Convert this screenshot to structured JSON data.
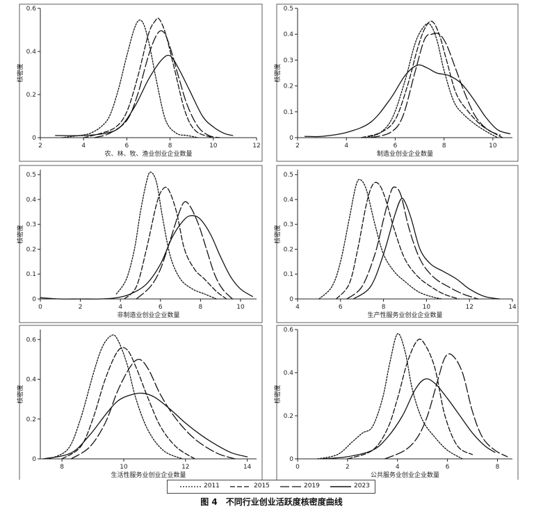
{
  "figure": {
    "caption": "图 4　不同行业创业活跃度核密度曲线"
  },
  "legend": [
    {
      "label": "2011",
      "dash": "2,2"
    },
    {
      "label": "2015",
      "dash": "7,3"
    },
    {
      "label": "2019",
      "dash": "13,4"
    },
    {
      "label": "2023",
      "dash": ""
    }
  ],
  "chart_data": [
    {
      "type": "line",
      "xlabel": "农、林、牧、渔业创业企业数量",
      "ylabel": "核密度",
      "xlim": [
        2,
        12
      ],
      "ylim": [
        0,
        0.6
      ],
      "xticks": [
        "2",
        "4",
        "6",
        "8",
        "10",
        "12"
      ],
      "yticks": [
        "0",
        "0.2",
        "0.4",
        "0.6"
      ],
      "series": [
        {
          "name": "2011",
          "x": [
            3.0,
            3.8,
            4.3,
            4.8,
            5.2,
            5.6,
            6.0,
            6.4,
            6.7,
            7.0,
            7.4,
            7.8,
            8.3,
            8.8,
            9.3
          ],
          "y": [
            0.0,
            0.01,
            0.02,
            0.05,
            0.1,
            0.22,
            0.38,
            0.52,
            0.54,
            0.45,
            0.25,
            0.08,
            0.02,
            0.01,
            0.0
          ]
        },
        {
          "name": "2015",
          "x": [
            4.0,
            4.8,
            5.5,
            6.0,
            6.5,
            7.0,
            7.3,
            7.5,
            7.8,
            8.2,
            8.7,
            9.2,
            10.0
          ],
          "y": [
            0.0,
            0.02,
            0.05,
            0.12,
            0.28,
            0.48,
            0.54,
            0.55,
            0.48,
            0.32,
            0.12,
            0.03,
            0.0
          ]
        },
        {
          "name": "2019",
          "x": [
            4.5,
            5.2,
            6.0,
            6.5,
            7.0,
            7.4,
            7.7,
            8.0,
            8.4,
            8.8,
            9.3,
            9.8,
            10.3
          ],
          "y": [
            0.0,
            0.02,
            0.08,
            0.2,
            0.38,
            0.48,
            0.49,
            0.42,
            0.28,
            0.15,
            0.05,
            0.01,
            0.0
          ]
        },
        {
          "name": "2023",
          "x": [
            2.7,
            4.0,
            5.0,
            5.7,
            6.4,
            7.0,
            7.6,
            8.0,
            8.4,
            8.9,
            9.5,
            10.0,
            10.5,
            10.9
          ],
          "y": [
            0.01,
            0.01,
            0.02,
            0.05,
            0.15,
            0.27,
            0.36,
            0.38,
            0.32,
            0.22,
            0.1,
            0.05,
            0.02,
            0.01
          ]
        }
      ]
    },
    {
      "type": "line",
      "xlabel": "制造业创业企业数量",
      "ylabel": "核密度",
      "xlim": [
        2,
        10.8
      ],
      "ylim": [
        0,
        0.5
      ],
      "xticks": [
        "2",
        "4",
        "6",
        "8",
        "10"
      ],
      "yticks": [
        "0",
        "0.1",
        "0.2",
        "0.3",
        "0.4",
        "0.5"
      ],
      "series": [
        {
          "name": "2011",
          "x": [
            4.8,
            5.4,
            5.9,
            6.4,
            6.8,
            7.1,
            7.4,
            7.7,
            8.0,
            8.4,
            8.8,
            9.3,
            9.8,
            10.2
          ],
          "y": [
            0.0,
            0.02,
            0.08,
            0.22,
            0.36,
            0.42,
            0.44,
            0.38,
            0.26,
            0.14,
            0.09,
            0.05,
            0.02,
            0.0
          ]
        },
        {
          "name": "2015",
          "x": [
            4.6,
            5.4,
            6.0,
            6.5,
            6.9,
            7.2,
            7.5,
            7.8,
            8.1,
            8.5,
            9.0,
            9.5,
            10.0,
            10.4
          ],
          "y": [
            0.0,
            0.02,
            0.07,
            0.2,
            0.34,
            0.42,
            0.45,
            0.4,
            0.3,
            0.17,
            0.1,
            0.05,
            0.02,
            0.0
          ]
        },
        {
          "name": "2019",
          "x": [
            5.0,
            5.8,
            6.3,
            6.8,
            7.2,
            7.5,
            7.8,
            8.1,
            8.5,
            8.9,
            9.3,
            9.8,
            10.3
          ],
          "y": [
            0.0,
            0.02,
            0.08,
            0.25,
            0.38,
            0.4,
            0.4,
            0.36,
            0.26,
            0.16,
            0.08,
            0.03,
            0.01
          ]
        },
        {
          "name": "2023",
          "x": [
            2.3,
            3.0,
            4.0,
            5.0,
            5.8,
            6.4,
            6.9,
            7.3,
            7.7,
            8.2,
            8.7,
            9.2,
            9.7,
            10.2,
            10.7
          ],
          "y": [
            0.005,
            0.005,
            0.02,
            0.06,
            0.15,
            0.24,
            0.28,
            0.27,
            0.25,
            0.24,
            0.21,
            0.15,
            0.08,
            0.03,
            0.015
          ]
        }
      ]
    },
    {
      "type": "line",
      "xlabel": "非制造业创业企业数量",
      "ylabel": "核密度",
      "xlim": [
        0,
        10.8
      ],
      "ylim": [
        0,
        0.52
      ],
      "xticks": [
        "0",
        "2",
        "4",
        "6",
        "8",
        "10"
      ],
      "yticks": [
        "0",
        "0.1",
        "0.2",
        "0.3",
        "0.4",
        "0.5"
      ],
      "series": [
        {
          "name": "2011",
          "x": [
            3.8,
            4.3,
            4.7,
            5.0,
            5.3,
            5.5,
            5.8,
            6.1,
            6.5,
            7.0,
            7.6,
            8.2,
            8.8
          ],
          "y": [
            0.02,
            0.08,
            0.2,
            0.35,
            0.47,
            0.51,
            0.47,
            0.33,
            0.17,
            0.08,
            0.04,
            0.02,
            0.0
          ]
        },
        {
          "name": "2015",
          "x": [
            4.2,
            4.8,
            5.3,
            5.8,
            6.1,
            6.4,
            6.8,
            7.2,
            7.7,
            8.2,
            8.8,
            9.3
          ],
          "y": [
            0.0,
            0.05,
            0.2,
            0.38,
            0.44,
            0.44,
            0.35,
            0.2,
            0.12,
            0.08,
            0.03,
            0.0
          ]
        },
        {
          "name": "2019",
          "x": [
            4.8,
            5.5,
            6.0,
            6.5,
            6.9,
            7.2,
            7.5,
            7.9,
            8.3,
            8.7,
            9.1,
            9.6
          ],
          "y": [
            0.0,
            0.05,
            0.12,
            0.24,
            0.34,
            0.39,
            0.37,
            0.3,
            0.2,
            0.1,
            0.04,
            0.0
          ]
        },
        {
          "name": "2023",
          "x": [
            0.0,
            1.0,
            2.0,
            3.0,
            3.8,
            4.5,
            5.3,
            6.0,
            6.6,
            7.2,
            7.6,
            8.0,
            8.5,
            9.0,
            9.5,
            10.0,
            10.6
          ],
          "y": [
            0.005,
            0.0,
            0.0,
            0.0,
            0.005,
            0.02,
            0.06,
            0.14,
            0.25,
            0.32,
            0.335,
            0.32,
            0.26,
            0.17,
            0.09,
            0.04,
            0.01
          ]
        }
      ]
    },
    {
      "type": "line",
      "xlabel": "生产性服务业创业企业数量",
      "ylabel": "核密度",
      "xlim": [
        4,
        14
      ],
      "ylim": [
        0,
        0.52
      ],
      "xticks": [
        "4",
        "6",
        "8",
        "10",
        "12",
        "14"
      ],
      "yticks": [
        "0",
        "0.1",
        "0.2",
        "0.3",
        "0.4",
        "0.5"
      ],
      "series": [
        {
          "name": "2011",
          "x": [
            5.0,
            5.6,
            6.0,
            6.4,
            6.7,
            6.9,
            7.2,
            7.6,
            8.0,
            8.5,
            9.0,
            9.6,
            10.2,
            10.7
          ],
          "y": [
            0.0,
            0.05,
            0.15,
            0.32,
            0.45,
            0.48,
            0.44,
            0.3,
            0.18,
            0.11,
            0.07,
            0.03,
            0.01,
            0.0
          ]
        },
        {
          "name": "2015",
          "x": [
            5.8,
            6.4,
            6.8,
            7.2,
            7.5,
            7.8,
            8.1,
            8.5,
            9.0,
            9.6,
            10.2,
            10.8,
            11.5
          ],
          "y": [
            0.0,
            0.06,
            0.2,
            0.38,
            0.46,
            0.46,
            0.4,
            0.28,
            0.16,
            0.09,
            0.05,
            0.02,
            0.0
          ]
        },
        {
          "name": "2019",
          "x": [
            6.3,
            7.0,
            7.6,
            8.0,
            8.3,
            8.5,
            8.8,
            9.2,
            9.7,
            10.3,
            11.0,
            11.7,
            12.4
          ],
          "y": [
            0.0,
            0.05,
            0.18,
            0.32,
            0.42,
            0.45,
            0.42,
            0.28,
            0.16,
            0.09,
            0.05,
            0.02,
            0.0
          ]
        },
        {
          "name": "2023",
          "x": [
            6.6,
            7.4,
            8.0,
            8.5,
            8.8,
            9.0,
            9.3,
            9.7,
            10.2,
            10.8,
            11.4,
            12.0,
            12.7,
            13.4
          ],
          "y": [
            0.0,
            0.05,
            0.18,
            0.33,
            0.4,
            0.39,
            0.32,
            0.2,
            0.14,
            0.11,
            0.08,
            0.04,
            0.01,
            0.0
          ]
        }
      ]
    },
    {
      "type": "line",
      "xlabel": "生活性服务业创业企业数量",
      "ylabel": "核密度",
      "xlim": [
        7.3,
        14.3
      ],
      "ylim": [
        0,
        0.65
      ],
      "xticks": [
        "8",
        "10",
        "12",
        "14"
      ],
      "yticks": [
        "0",
        "0.2",
        "0.4",
        "0.6"
      ],
      "series": [
        {
          "name": "2011",
          "x": [
            7.6,
            8.2,
            8.6,
            9.0,
            9.3,
            9.6,
            9.8,
            10.1,
            10.4,
            10.8,
            11.3,
            11.9
          ],
          "y": [
            0.0,
            0.05,
            0.2,
            0.42,
            0.56,
            0.62,
            0.6,
            0.48,
            0.3,
            0.14,
            0.04,
            0.0
          ]
        },
        {
          "name": "2015",
          "x": [
            8.0,
            8.6,
            9.0,
            9.4,
            9.8,
            10.1,
            10.4,
            10.8,
            11.2,
            11.7,
            12.3
          ],
          "y": [
            0.0,
            0.06,
            0.2,
            0.4,
            0.54,
            0.55,
            0.46,
            0.3,
            0.16,
            0.06,
            0.0
          ]
        },
        {
          "name": "2019",
          "x": [
            8.3,
            8.9,
            9.4,
            9.8,
            10.2,
            10.5,
            10.8,
            11.2,
            11.7,
            12.3,
            13.0,
            13.6
          ],
          "y": [
            0.0,
            0.06,
            0.18,
            0.34,
            0.46,
            0.5,
            0.45,
            0.32,
            0.2,
            0.1,
            0.03,
            0.0
          ]
        },
        {
          "name": "2023",
          "x": [
            7.4,
            8.3,
            8.9,
            9.4,
            9.8,
            10.2,
            10.6,
            11.0,
            11.5,
            12.0,
            12.5,
            13.0,
            13.5,
            14.0
          ],
          "y": [
            0.0,
            0.03,
            0.12,
            0.22,
            0.29,
            0.32,
            0.33,
            0.31,
            0.25,
            0.18,
            0.12,
            0.07,
            0.03,
            0.01
          ]
        }
      ]
    },
    {
      "type": "line",
      "xlabel": "公共服务业创业企业数量",
      "ylabel": "核密度",
      "xlim": [
        0,
        8.6
      ],
      "ylim": [
        0,
        0.6
      ],
      "xticks": [
        "0",
        "2",
        "4",
        "6",
        "8"
      ],
      "yticks": [
        "0",
        "0.2",
        "0.4",
        "0.6"
      ],
      "series": [
        {
          "name": "2011",
          "x": [
            0.8,
            1.6,
            2.2,
            2.6,
            3.0,
            3.4,
            3.7,
            4.0,
            4.3,
            4.6,
            5.0,
            5.5,
            6.0,
            6.6
          ],
          "y": [
            0.0,
            0.02,
            0.08,
            0.12,
            0.15,
            0.28,
            0.45,
            0.58,
            0.5,
            0.32,
            0.18,
            0.1,
            0.04,
            0.0
          ]
        },
        {
          "name": "2015",
          "x": [
            2.0,
            3.0,
            3.6,
            4.0,
            4.4,
            4.8,
            5.1,
            5.5,
            5.9,
            6.4,
            7.0
          ],
          "y": [
            0.0,
            0.04,
            0.14,
            0.28,
            0.45,
            0.55,
            0.53,
            0.42,
            0.2,
            0.06,
            0.02
          ]
        },
        {
          "name": "2019",
          "x": [
            3.5,
            4.3,
            4.8,
            5.2,
            5.6,
            5.9,
            6.2,
            6.6,
            7.0,
            7.4,
            7.9,
            8.4
          ],
          "y": [
            0.0,
            0.04,
            0.1,
            0.2,
            0.36,
            0.47,
            0.48,
            0.4,
            0.22,
            0.1,
            0.04,
            0.01
          ]
        },
        {
          "name": "2023",
          "x": [
            1.0,
            2.0,
            3.0,
            3.6,
            4.2,
            4.7,
            5.1,
            5.5,
            6.0,
            6.5,
            7.0,
            7.5,
            7.9
          ],
          "y": [
            0.0,
            0.01,
            0.04,
            0.1,
            0.2,
            0.32,
            0.37,
            0.35,
            0.28,
            0.2,
            0.12,
            0.06,
            0.03
          ]
        }
      ]
    }
  ]
}
